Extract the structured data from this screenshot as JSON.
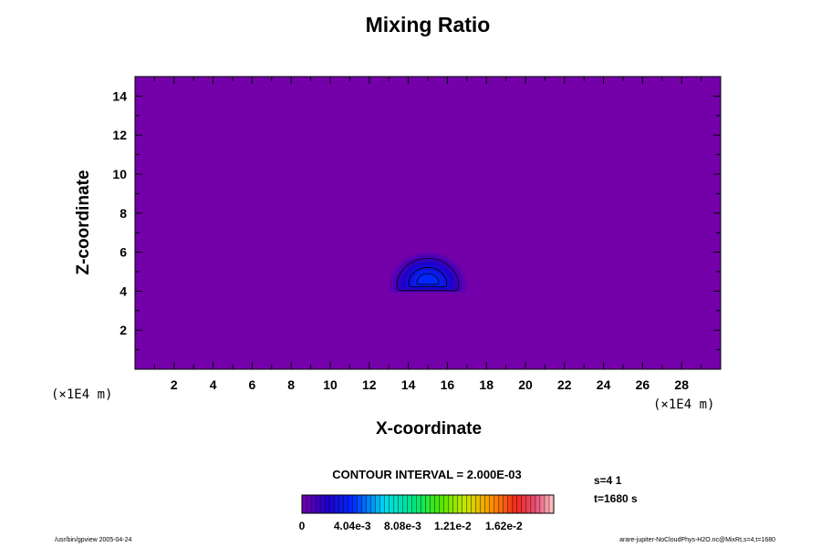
{
  "chart_data": {
    "type": "heatmap",
    "title": "Mixing Ratio",
    "xlabel": "X-coordinate",
    "ylabel": "Z-coordinate",
    "x_unit": "(×1E4 m)",
    "y_unit": "(×1E4 m)",
    "xlim": [
      0,
      30
    ],
    "ylim": [
      0,
      15
    ],
    "x_ticks": [
      "2",
      "4",
      "6",
      "8",
      "10",
      "12",
      "14",
      "16",
      "18",
      "20",
      "22",
      "24",
      "26",
      "28"
    ],
    "y_ticks": [
      "2",
      "4",
      "6",
      "8",
      "10",
      "12",
      "14"
    ],
    "grid": false,
    "background_level": 0,
    "feature": {
      "shape": "half-ellipse cap",
      "x_range": [
        13,
        17
      ],
      "base_z": 4,
      "top_z": 6,
      "peak_value": 0.004,
      "peak_center": [
        15,
        4.7
      ]
    },
    "contour_interval": "CONTOUR INTERVAL = 2.000E-03",
    "colorbar": {
      "labels": [
        "0",
        "4.04e-3",
        "8.08e-3",
        "1.21e-2",
        "1.62e-2"
      ],
      "values": [
        0,
        0.00404,
        0.00808,
        0.0121,
        0.0162
      ],
      "range": [
        0,
        0.0202
      ],
      "levels": 55
    },
    "info": {
      "s": "s=4 1",
      "t": "t=1680 s"
    },
    "colors": {
      "background_fill": "#7400aa",
      "frame": "#000000"
    }
  },
  "footer": {
    "left": "/usr/bin/gpview 2005-04-24",
    "right": "arare-jupiter-NoCloudPhys-H2O.nc@MixRt,s=4,t=1680"
  }
}
